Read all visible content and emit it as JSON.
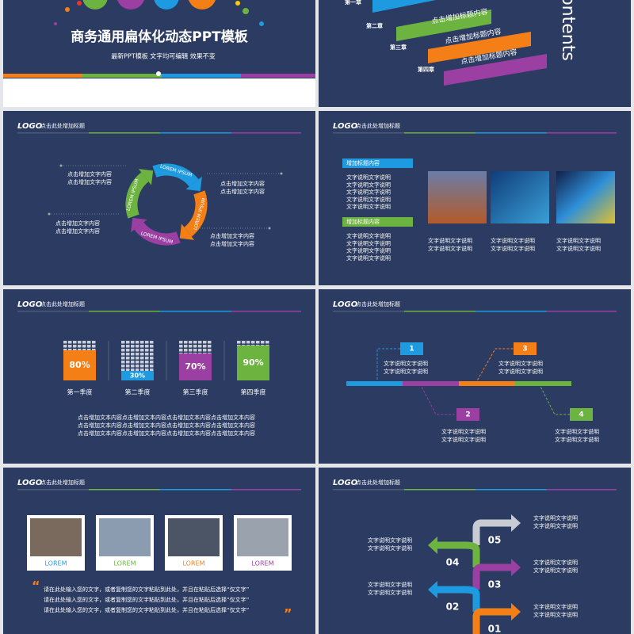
{
  "cover": {
    "title": "商务通用扁体化动态PPT模板",
    "subtitle": "最新PPT模板  文字均可编辑  效果不变"
  },
  "contents": {
    "heading": "ontents",
    "chapters": [
      "第一章",
      "第二章",
      "第三章",
      "第四章"
    ],
    "items": [
      "点击增加标题内容",
      "点击增加标题内容",
      "点击增加标题内容"
    ]
  },
  "headers": [
    {
      "logo": "LOGO",
      "title": "点击此处增加标题"
    },
    {
      "logo": "LOGO",
      "title": "点击此处增加标题"
    },
    {
      "logo": "LOGO",
      "title": "点击此处增加标题"
    },
    {
      "logo": "LOGO",
      "title": "点击此处增加标题"
    },
    {
      "logo": "LOGO",
      "title": "点击此处增加标题"
    },
    {
      "logo": "LOGO",
      "title": "点击此处增加标题"
    }
  ],
  "cycle": {
    "arrows": [
      "LOREM IPSUM",
      "LOREM IPSUM",
      "LOREM IPSUM",
      "LOREM IPSUM"
    ],
    "notes": [
      [
        "点击增加文字内容",
        "点击增加文字内容"
      ],
      [
        "点击增加文字内容",
        "点击增加文字内容"
      ],
      [
        "点击增加文字内容",
        "点击增加文字内容"
      ],
      [
        "点击增加文字内容",
        "点击增加文字内容"
      ]
    ]
  },
  "photos": {
    "tags": [
      "增加标题内容",
      "增加标题内容"
    ],
    "tag_lines": [
      [
        "文字说明文字说明",
        "文字说明文字说明",
        "文字说明文字说明",
        "文字说明文字说明",
        "文字说明文字说明"
      ],
      [
        "文字说明文字说明",
        "文字说明文字说明",
        "文字说明文字说明",
        "文字说明文字说明"
      ]
    ],
    "captions": [
      [
        "文字说明文字说明",
        "文字说明文字说明"
      ],
      [
        "文字说明文字说明",
        "文字说明文字说明"
      ],
      [
        "文字说明文字说明",
        "文字说明文字说明"
      ]
    ]
  },
  "quarters": {
    "items": [
      {
        "value": "80%",
        "label": "第一季度"
      },
      {
        "value": "30%",
        "label": "第二季度"
      },
      {
        "value": "70%",
        "label": "第三季度"
      },
      {
        "value": "90%",
        "label": "第四季度"
      }
    ],
    "body": [
      "点击增加文本内容点击增加文本内容点击增加文本内容点击增加文本内容",
      "点击增加文本内容点击增加文本内容点击增加文本内容点击增加文本内容",
      "点击增加文本内容点击增加文本内容点击增加文本内容点击增加文本内容"
    ]
  },
  "timeline": {
    "steps": [
      {
        "n": "1",
        "lines": [
          "文字说明文字说明",
          "文字说明文字说明"
        ]
      },
      {
        "n": "2",
        "lines": [
          "文字说明文字说明",
          "文字说明文字说明"
        ]
      },
      {
        "n": "3",
        "lines": [
          "文字说明文字说明",
          "文字说明文字说明"
        ]
      },
      {
        "n": "4",
        "lines": [
          "文字说明文字说明",
          "文字说明文字说明"
        ]
      }
    ]
  },
  "team": {
    "labels": [
      "LOREM",
      "LOREM",
      "LOREM",
      "LOREM"
    ],
    "quote_open": "“",
    "quote_close": "”",
    "quote": [
      "请在此处输入您的文字，或者复制您的文字粘贴到此处，并且在粘贴后选择“仅文字”",
      "请在此处输入您的文字，或者复制您的文字粘贴到此处，并且在粘贴后选择“仅文字”",
      "请在此处输入您的文字，或者复制您的文字粘贴到此处，并且在粘贴后选择“仅文字”"
    ]
  },
  "stairs": {
    "numbers": [
      "05",
      "04",
      "03",
      "02",
      "01"
    ],
    "notes": [
      [
        "文字说明文字说明",
        "文字说明文字说明"
      ],
      [
        "文字说明文字说明",
        "文字说明文字说明"
      ],
      [
        "文字说明文字说明",
        "文字说明文字说明"
      ],
      [
        "文字说明文字说明",
        "文字说明文字说明"
      ],
      [
        "文字说明文字说明",
        "文字说明文字说明"
      ]
    ]
  }
}
